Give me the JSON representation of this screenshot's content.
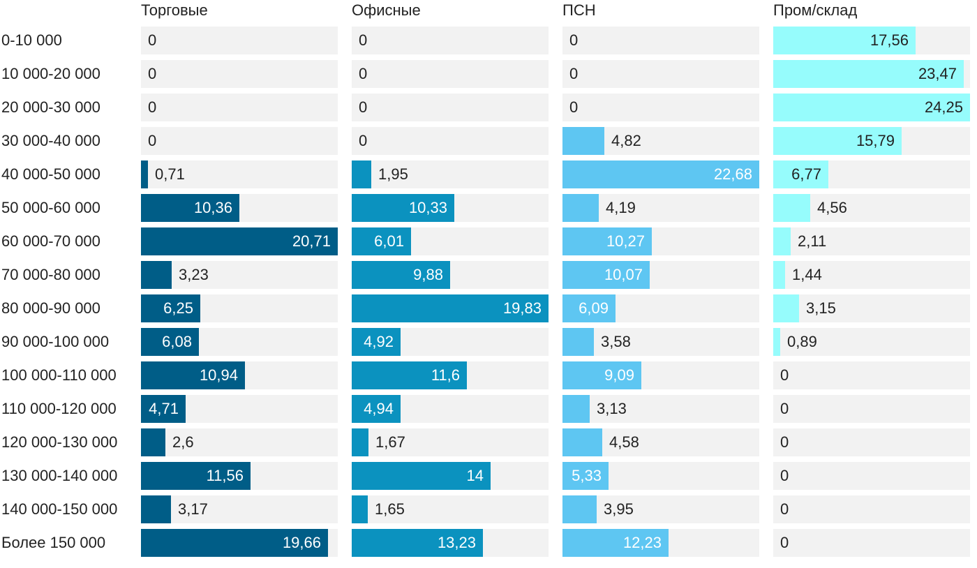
{
  "chart_data": {
    "type": "bar",
    "orientation": "horizontal",
    "layout": "small-multiples",
    "categories": [
      "0-10 000",
      "10 000-20 000",
      "20 000-30 000",
      "30 000-40 000",
      "40 000-50 000",
      "50 000-60 000",
      "60 000-70 000",
      "70 000-80 000",
      "80 000-90 000",
      "90 000-100 000",
      "100 000-110 000",
      "110 000-120 000",
      "120 000-130 000",
      "130 000-140 000",
      "140 000-150 000",
      "Более 150 000"
    ],
    "series": [
      {
        "name": "Торговые",
        "color": "#005d87",
        "values": [
          0,
          0,
          0,
          0,
          0.71,
          10.36,
          20.71,
          3.23,
          6.25,
          6.08,
          10.94,
          4.71,
          2.6,
          11.56,
          3.17,
          19.66
        ],
        "labels": [
          "0",
          "0",
          "0",
          "0",
          "0,71",
          "10,36",
          "20,71",
          "3,23",
          "6,25",
          "6,08",
          "10,94",
          "4,71",
          "2,6",
          "11,56",
          "3,17",
          "19,66"
        ]
      },
      {
        "name": "Офисные",
        "color": "#0b92bf",
        "values": [
          0,
          0,
          0,
          0,
          1.95,
          10.33,
          6.01,
          9.88,
          19.83,
          4.92,
          11.6,
          4.94,
          1.67,
          14,
          1.65,
          13.23
        ],
        "labels": [
          "0",
          "0",
          "0",
          "0",
          "1,95",
          "10,33",
          "6,01",
          "9,88",
          "19,83",
          "4,92",
          "11,6",
          "4,94",
          "1,67",
          "14",
          "1,65",
          "13,23"
        ]
      },
      {
        "name": "ПСН",
        "color": "#5ec6f2",
        "values": [
          0,
          0,
          0,
          4.82,
          22.68,
          4.19,
          10.27,
          10.07,
          6.09,
          3.58,
          9.09,
          3.13,
          4.58,
          5.33,
          3.95,
          12.23
        ],
        "labels": [
          "0",
          "0",
          "0",
          "4,82",
          "22,68",
          "4,19",
          "10,27",
          "10,07",
          "6,09",
          "3,58",
          "9,09",
          "3,13",
          "4,58",
          "5,33",
          "3,95",
          "12,23"
        ]
      },
      {
        "name": "Пром/склад",
        "color": "#96fcfc",
        "values": [
          17.56,
          23.47,
          24.25,
          15.79,
          6.77,
          4.56,
          2.11,
          1.44,
          3.15,
          0.89,
          0,
          0,
          0,
          0,
          0,
          0
        ],
        "labels": [
          "17,56",
          "23,47",
          "24,25",
          "15,79",
          "6,77",
          "4,56",
          "2,11",
          "1,44",
          "3,15",
          "0,89",
          "0",
          "0",
          "0",
          "0",
          "0",
          "0"
        ]
      }
    ],
    "title": "",
    "xlabel": "",
    "ylabel": "",
    "grid": false,
    "legend": "none"
  }
}
